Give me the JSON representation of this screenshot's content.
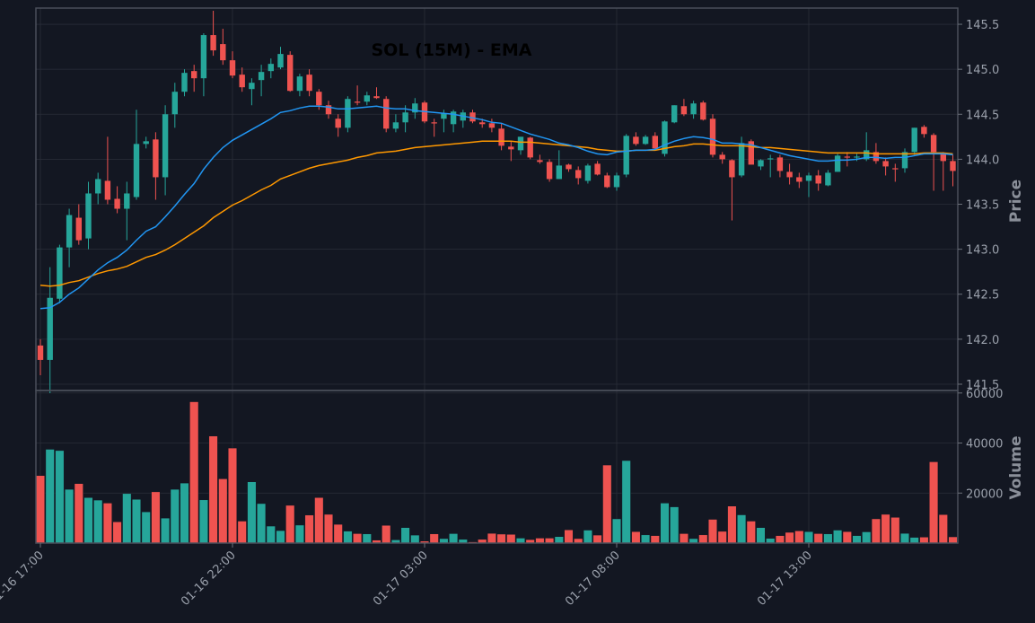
{
  "chart_data": {
    "type": "candlestick",
    "title": "SOL (15M) - EMA",
    "price_axis": {
      "label": "Price",
      "ylim": [
        141.43,
        145.68
      ],
      "ticks": [
        "141.5",
        "142.0",
        "142.5",
        "143.0",
        "143.5",
        "144.0",
        "144.5",
        "145.0",
        "145.5"
      ]
    },
    "volume_axis": {
      "label": "Volume",
      "ylim": [
        0,
        61000
      ],
      "ticks": [
        "20000",
        "40000",
        "60000"
      ]
    },
    "x_ticks": [
      "01-16 17:00",
      "01-16 22:00",
      "01-17 03:00",
      "01-17 08:00",
      "01-17 13:00"
    ],
    "x_tick_index": [
      0,
      20,
      40,
      60,
      80
    ],
    "grid": true,
    "colors": {
      "background": "#131722",
      "up": "#26a69a",
      "down": "#ef5350",
      "ema_fast": "#2196f3",
      "ema_slow": "#ff9800",
      "grid": "#2a2e39",
      "frame": "#4a4f5a"
    },
    "ohlc": [
      [
        141.93,
        142.0,
        141.6,
        141.77
      ],
      [
        141.77,
        142.8,
        141.4,
        142.46
      ],
      [
        142.45,
        143.05,
        142.4,
        143.02
      ],
      [
        143.02,
        143.45,
        142.8,
        143.38
      ],
      [
        143.35,
        143.5,
        143.05,
        143.1
      ],
      [
        143.12,
        143.75,
        143.0,
        143.62
      ],
      [
        143.62,
        143.85,
        143.5,
        143.78
      ],
      [
        143.76,
        144.25,
        143.5,
        143.55
      ],
      [
        143.56,
        143.7,
        143.4,
        143.45
      ],
      [
        143.45,
        143.75,
        143.1,
        143.62
      ],
      [
        143.58,
        144.55,
        143.55,
        144.17
      ],
      [
        144.17,
        144.25,
        144.12,
        144.2
      ],
      [
        144.22,
        144.3,
        143.55,
        143.8
      ],
      [
        143.8,
        144.6,
        143.6,
        144.5
      ],
      [
        144.5,
        144.85,
        144.35,
        144.75
      ],
      [
        144.75,
        145.0,
        144.7,
        144.96
      ],
      [
        144.98,
        145.05,
        144.75,
        144.9
      ],
      [
        144.9,
        145.4,
        144.7,
        145.38
      ],
      [
        145.38,
        145.65,
        145.15,
        145.21
      ],
      [
        145.28,
        145.45,
        145.05,
        145.1
      ],
      [
        145.1,
        145.2,
        144.9,
        144.93
      ],
      [
        144.94,
        145.02,
        144.75,
        144.8
      ],
      [
        144.78,
        144.9,
        144.6,
        144.85
      ],
      [
        144.88,
        145.05,
        144.7,
        144.97
      ],
      [
        144.98,
        145.12,
        144.9,
        145.06
      ],
      [
        145.02,
        145.25,
        145.0,
        145.17
      ],
      [
        145.16,
        145.2,
        144.75,
        144.76
      ],
      [
        144.76,
        144.95,
        144.7,
        144.92
      ],
      [
        144.94,
        145.0,
        144.7,
        144.76
      ],
      [
        144.75,
        144.78,
        144.55,
        144.6
      ],
      [
        144.6,
        144.65,
        144.45,
        144.5
      ],
      [
        144.45,
        144.5,
        144.25,
        144.35
      ],
      [
        144.35,
        144.7,
        144.3,
        144.67
      ],
      [
        144.64,
        144.82,
        144.6,
        144.63
      ],
      [
        144.64,
        144.75,
        144.6,
        144.71
      ],
      [
        144.7,
        144.8,
        144.67,
        144.68
      ],
      [
        144.67,
        144.7,
        144.3,
        144.34
      ],
      [
        144.34,
        144.5,
        144.3,
        144.41
      ],
      [
        144.41,
        144.6,
        144.3,
        144.52
      ],
      [
        144.52,
        144.68,
        144.45,
        144.62
      ],
      [
        144.63,
        144.65,
        144.4,
        144.42
      ],
      [
        144.41,
        144.45,
        144.25,
        144.4
      ],
      [
        144.45,
        144.55,
        144.3,
        144.51
      ],
      [
        144.39,
        144.55,
        144.3,
        144.53
      ],
      [
        144.43,
        144.55,
        144.35,
        144.52
      ],
      [
        144.52,
        144.55,
        144.4,
        144.42
      ],
      [
        144.41,
        144.45,
        144.35,
        144.39
      ],
      [
        144.4,
        144.45,
        144.3,
        144.35
      ],
      [
        144.34,
        144.4,
        144.1,
        144.15
      ],
      [
        144.14,
        144.2,
        143.98,
        144.11
      ],
      [
        144.1,
        144.25,
        144.05,
        144.25
      ],
      [
        144.24,
        144.25,
        144.0,
        144.02
      ],
      [
        143.99,
        144.05,
        143.95,
        143.97
      ],
      [
        143.97,
        144.0,
        143.75,
        143.78
      ],
      [
        143.78,
        144.1,
        143.78,
        143.93
      ],
      [
        143.94,
        143.95,
        143.86,
        143.89
      ],
      [
        143.88,
        143.92,
        143.72,
        143.79
      ],
      [
        143.76,
        143.95,
        143.73,
        143.93
      ],
      [
        143.95,
        143.98,
        143.82,
        143.83
      ],
      [
        143.82,
        143.85,
        143.68,
        143.69
      ],
      [
        143.69,
        143.85,
        143.65,
        143.82
      ],
      [
        143.83,
        144.28,
        143.8,
        144.26
      ],
      [
        144.25,
        144.3,
        144.15,
        144.17
      ],
      [
        144.17,
        144.27,
        144.16,
        144.25
      ],
      [
        144.26,
        144.3,
        144.1,
        144.12
      ],
      [
        144.06,
        144.43,
        144.03,
        144.42
      ],
      [
        144.41,
        144.6,
        144.4,
        144.6
      ],
      [
        144.59,
        144.67,
        144.48,
        144.5
      ],
      [
        144.5,
        144.65,
        144.45,
        144.62
      ],
      [
        144.63,
        144.65,
        144.43,
        144.44
      ],
      [
        144.45,
        144.5,
        144.02,
        144.05
      ],
      [
        144.05,
        144.08,
        143.95,
        144.0
      ],
      [
        143.99,
        144.0,
        143.32,
        143.8
      ],
      [
        143.82,
        144.25,
        143.8,
        144.18
      ],
      [
        144.2,
        144.22,
        143.95,
        143.94
      ],
      [
        143.92,
        144.0,
        143.88,
        143.99
      ],
      [
        144.0,
        144.05,
        143.8,
        144.01
      ],
      [
        144.02,
        144.05,
        143.8,
        143.87
      ],
      [
        143.86,
        143.95,
        143.72,
        143.8
      ],
      [
        143.8,
        143.85,
        143.68,
        143.75
      ],
      [
        143.76,
        143.85,
        143.58,
        143.82
      ],
      [
        143.82,
        143.88,
        143.65,
        143.73
      ],
      [
        143.71,
        143.88,
        143.7,
        143.85
      ],
      [
        143.86,
        144.06,
        143.86,
        144.04
      ],
      [
        144.03,
        144.08,
        143.92,
        144.02
      ],
      [
        144.02,
        144.06,
        143.98,
        144.03
      ],
      [
        144.0,
        144.3,
        143.98,
        144.1
      ],
      [
        144.08,
        144.18,
        143.95,
        143.98
      ],
      [
        143.98,
        144.02,
        143.82,
        143.92
      ],
      [
        143.9,
        143.95,
        143.75,
        143.89
      ],
      [
        143.9,
        144.12,
        143.85,
        144.08
      ],
      [
        144.08,
        144.35,
        144.05,
        144.35
      ],
      [
        144.36,
        144.38,
        144.24,
        144.28
      ],
      [
        144.27,
        144.29,
        143.65,
        144.08
      ],
      [
        144.06,
        144.08,
        143.65,
        143.98
      ],
      [
        143.98,
        144.05,
        143.7,
        143.87
      ]
    ],
    "volume": [
      27000,
      37500,
      37000,
      21500,
      23800,
      18200,
      17200,
      16000,
      8500,
      19800,
      17500,
      12500,
      20500,
      10000,
      21500,
      24000,
      56500,
      17300,
      42800,
      25700,
      38000,
      8800,
      24500,
      15800,
      6800,
      5000,
      15100,
      7200,
      11200,
      18200,
      11500,
      7500,
      4800,
      3800,
      3700,
      1200,
      7100,
      1300,
      6200,
      3200,
      800,
      3700,
      1800,
      3800,
      1500,
      500,
      1500,
      3900,
      3600,
      3500,
      2000,
      1400,
      2000,
      2000,
      2600,
      5300,
      1800,
      5200,
      3200,
      31200,
      9700,
      33000,
      4600,
      3300,
      3000,
      16000,
      14500,
      3800,
      1800,
      3300,
      9500,
      4700,
      14800,
      11300,
      8800,
      6200,
      1900,
      3000,
      4300,
      4900,
      4600,
      3800,
      3700,
      5200,
      4600,
      3000,
      4500,
      9700,
      11500,
      10300,
      3900,
      2300,
      2400,
      32500,
      11400,
      2500
    ],
    "ema_fast": [
      142.34,
      142.35,
      142.41,
      142.5,
      142.57,
      142.67,
      142.77,
      142.85,
      142.91,
      142.99,
      143.1,
      143.2,
      143.25,
      143.36,
      143.48,
      143.61,
      143.73,
      143.89,
      144.02,
      144.13,
      144.21,
      144.27,
      144.33,
      144.39,
      144.45,
      144.52,
      144.54,
      144.57,
      144.59,
      144.59,
      144.58,
      144.56,
      144.56,
      144.57,
      144.58,
      144.59,
      144.57,
      144.56,
      144.56,
      144.54,
      144.53,
      144.52,
      144.51,
      144.5,
      144.48,
      144.46,
      144.44,
      144.41,
      144.4,
      144.36,
      144.32,
      144.28,
      144.25,
      144.22,
      144.18,
      144.16,
      144.13,
      144.09,
      144.06,
      144.05,
      144.08,
      144.09,
      144.1,
      144.1,
      144.11,
      144.16,
      144.2,
      144.23,
      144.25,
      144.24,
      144.22,
      144.18,
      144.18,
      144.17,
      144.16,
      144.13,
      144.1,
      144.07,
      144.04,
      144.02,
      144.0,
      143.98,
      143.98,
      143.99,
      143.99,
      144.0,
      144.02,
      144.02,
      144.01,
      144.02,
      144.02,
      144.04,
      144.06,
      144.06,
      144.06,
      144.05
    ],
    "ema_slow": [
      142.6,
      142.59,
      142.6,
      142.63,
      142.65,
      142.69,
      142.73,
      142.76,
      142.78,
      142.81,
      142.86,
      142.91,
      142.94,
      142.99,
      143.05,
      143.12,
      143.19,
      143.26,
      143.35,
      143.42,
      143.49,
      143.54,
      143.6,
      143.66,
      143.71,
      143.78,
      143.82,
      143.86,
      143.9,
      143.93,
      143.95,
      143.97,
      143.99,
      144.02,
      144.04,
      144.07,
      144.08,
      144.09,
      144.11,
      144.13,
      144.14,
      144.15,
      144.16,
      144.17,
      144.18,
      144.19,
      144.2,
      144.2,
      144.2,
      144.2,
      144.19,
      144.19,
      144.18,
      144.17,
      144.16,
      144.15,
      144.14,
      144.13,
      144.11,
      144.1,
      144.09,
      144.09,
      144.1,
      144.1,
      144.1,
      144.12,
      144.14,
      144.15,
      144.17,
      144.17,
      144.16,
      144.15,
      144.15,
      144.15,
      144.14,
      144.13,
      144.13,
      144.12,
      144.11,
      144.1,
      144.09,
      144.08,
      144.07,
      144.07,
      144.07,
      144.07,
      144.07,
      144.06,
      144.06,
      144.06,
      144.06,
      144.06,
      144.07,
      144.07,
      144.07,
      144.06
    ]
  }
}
